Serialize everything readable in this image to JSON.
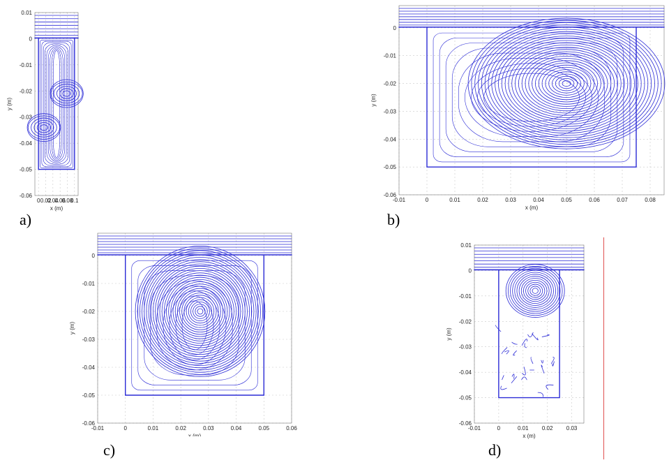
{
  "colors": {
    "streamline": "#2b2bd6",
    "grid": "#c8c8c8",
    "axis": "#000000",
    "marker": "#e05050"
  },
  "chart_data": [
    {
      "id": "a",
      "type": "streamline",
      "panel_label": "a)",
      "xlabel": "x (m)",
      "ylabel": "y (m)",
      "xlim": [
        -0.01,
        0.11
      ],
      "ylim": [
        -0.06,
        0.01
      ],
      "xticks": [
        0,
        0.02,
        0.04,
        0.06,
        0.08,
        0.1
      ],
      "xtick_labels": [
        "0",
        "0.02",
        "0.04",
        "0.06",
        "0.08",
        "0.1"
      ],
      "yticks": [
        0.01,
        0,
        -0.01,
        -0.02,
        -0.03,
        -0.04,
        -0.05,
        -0.06
      ],
      "ytick_labels": [
        "0.01",
        "0",
        "-0.01",
        "-0.02",
        "-0.03",
        "-0.04",
        "-0.05",
        "-0.06"
      ],
      "cavity": {
        "x": [
          0,
          0.1
        ],
        "y": [
          -0.05,
          0
        ]
      },
      "vortices": [
        {
          "x": 0.015,
          "y": -0.034
        },
        {
          "x": 0.078,
          "y": -0.021
        }
      ]
    },
    {
      "id": "b",
      "type": "streamline",
      "panel_label": "b)",
      "xlabel": "x (m)",
      "ylabel": "y (m)",
      "xlim": [
        -0.01,
        0.085
      ],
      "ylim": [
        -0.06,
        0.008
      ],
      "xticks": [
        -0.01,
        0,
        0.01,
        0.02,
        0.03,
        0.04,
        0.05,
        0.06,
        0.07,
        0.08
      ],
      "xtick_labels": [
        "-0.01",
        "0",
        "0.01",
        "0.02",
        "0.03",
        "0.04",
        "0.05",
        "0.06",
        "0.07",
        "0.08"
      ],
      "yticks": [
        0,
        -0.01,
        -0.02,
        -0.03,
        -0.04,
        -0.05,
        -0.06
      ],
      "ytick_labels": [
        "0",
        "-0.01",
        "-0.02",
        "-0.03",
        "-0.04",
        "-0.05",
        "-0.06"
      ],
      "cavity": {
        "x": [
          0,
          0.075
        ],
        "y": [
          -0.05,
          0
        ]
      },
      "vortices": [
        {
          "x": 0.05,
          "y": -0.02
        }
      ]
    },
    {
      "id": "c",
      "type": "streamline",
      "panel_label": "c)",
      "xlabel": "x (m)",
      "ylabel": "y (m)",
      "xlim": [
        -0.01,
        0.06
      ],
      "ylim": [
        -0.06,
        0.008
      ],
      "xticks": [
        -0.01,
        0,
        0.01,
        0.02,
        0.03,
        0.04,
        0.05,
        0.06
      ],
      "xtick_labels": [
        "-0.01",
        "0",
        "0.01",
        "0.02",
        "0.03",
        "0.04",
        "0.05",
        "0.06"
      ],
      "yticks": [
        0,
        -0.01,
        -0.02,
        -0.03,
        -0.04,
        -0.05,
        -0.06
      ],
      "ytick_labels": [
        "0",
        "-0.01",
        "-0.02",
        "-0.03",
        "-0.04",
        "-0.05",
        "-0.06"
      ],
      "cavity": {
        "x": [
          0,
          0.05
        ],
        "y": [
          -0.05,
          0
        ]
      },
      "vortices": [
        {
          "x": 0.027,
          "y": -0.02
        }
      ]
    },
    {
      "id": "d",
      "type": "streamline",
      "panel_label": "d)",
      "xlabel": "x (m)",
      "ylabel": "y (m)",
      "xlim": [
        -0.01,
        0.035
      ],
      "ylim": [
        -0.06,
        0.01
      ],
      "xticks": [
        -0.01,
        0,
        0.01,
        0.02,
        0.03
      ],
      "xtick_labels": [
        "-0.01",
        "0",
        "0.01",
        "0.02",
        "0.03"
      ],
      "yticks": [
        0.01,
        0,
        -0.01,
        -0.02,
        -0.03,
        -0.04,
        -0.05,
        -0.06
      ],
      "ytick_labels": [
        "0.01",
        "0",
        "-0.01",
        "-0.02",
        "-0.03",
        "-0.04",
        "-0.05",
        "-0.06"
      ],
      "cavity": {
        "x": [
          0,
          0.025
        ],
        "y": [
          -0.05,
          0
        ]
      },
      "vortices": [
        {
          "x": 0.015,
          "y": -0.008
        }
      ]
    }
  ]
}
